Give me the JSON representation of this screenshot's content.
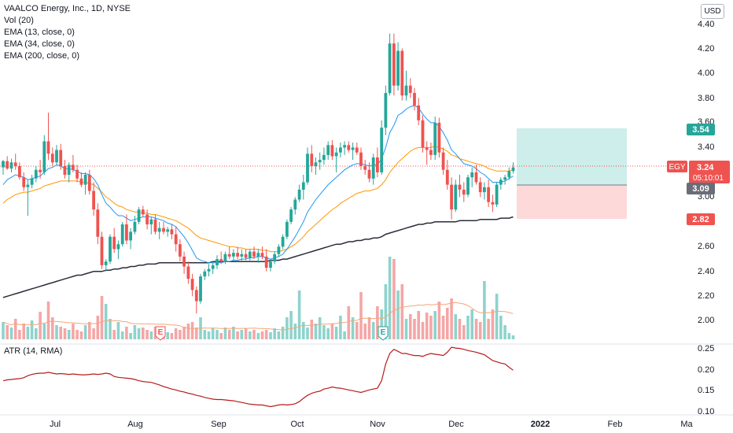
{
  "header": {
    "symbol_title": "VAALCO Energy, Inc., 1D, NYSE",
    "indicators": [
      "Vol (20)",
      "EMA (13, close, 0)",
      "EMA (34, close, 0)",
      "EMA (200, close, 0)"
    ],
    "currency": "USD"
  },
  "atr_legend": "ATR (14, RMA)",
  "price_axis": {
    "ticks": [
      "4.40",
      "4.20",
      "4.00",
      "3.80",
      "3.60",
      "3.40",
      "3.00",
      "2.60",
      "2.40",
      "2.20",
      "2.00"
    ]
  },
  "atr_axis": {
    "ticks": [
      "0.25",
      "0.20",
      "0.15",
      "0.10"
    ]
  },
  "time_axis": {
    "labels": [
      "Jul",
      "Aug",
      "Sep",
      "Oct",
      "Nov",
      "Dec",
      "2022",
      "Feb",
      "Ma"
    ]
  },
  "badges": {
    "symbol": "EGY",
    "last_price": "3.24",
    "countdown": "05:10:01",
    "target": "3.54",
    "entry": "3.09",
    "stop": "2.82",
    "earnings_letter": "E"
  },
  "colors": {
    "up": "#26a69a",
    "down": "#ef5350",
    "vol_up": "#8ed3cc",
    "vol_down": "#f5a6a6",
    "ema13": "#2196f3",
    "ema34": "#ff9800",
    "ema200": "#2a2e39",
    "atr": "#b71c1c",
    "profit_zone": "#cdeeea",
    "loss_zone": "#fdd9d9"
  },
  "chart_data": {
    "type": "candlestick",
    "title": "VAALCO Energy, Inc., 1D, NYSE",
    "ylim": [
      1.9,
      4.46
    ],
    "position": {
      "target": 3.54,
      "entry": 3.09,
      "stop": 2.82
    },
    "last_price": 3.24,
    "series_price": [
      [
        3.24,
        3.3,
        3.18,
        3.29
      ],
      [
        3.29,
        3.33,
        3.22,
        3.23
      ],
      [
        3.23,
        3.31,
        3.2,
        3.28
      ],
      [
        3.28,
        3.35,
        3.22,
        3.25
      ],
      [
        3.25,
        3.28,
        3.14,
        3.16
      ],
      [
        3.16,
        3.2,
        3.05,
        3.08
      ],
      [
        3.08,
        3.14,
        2.85,
        3.1
      ],
      [
        3.1,
        3.18,
        3.07,
        3.15
      ],
      [
        3.15,
        3.25,
        3.12,
        3.22
      ],
      [
        3.22,
        3.3,
        3.15,
        3.2
      ],
      [
        3.2,
        3.5,
        3.18,
        3.45
      ],
      [
        3.45,
        3.68,
        3.3,
        3.35
      ],
      [
        3.35,
        3.4,
        3.25,
        3.28
      ],
      [
        3.28,
        3.42,
        3.26,
        3.38
      ],
      [
        3.38,
        3.43,
        3.22,
        3.25
      ],
      [
        3.25,
        3.3,
        3.15,
        3.18
      ],
      [
        3.18,
        3.28,
        3.12,
        3.26
      ],
      [
        3.26,
        3.34,
        3.2,
        3.22
      ],
      [
        3.22,
        3.26,
        3.12,
        3.15
      ],
      [
        3.15,
        3.2,
        3.08,
        3.1
      ],
      [
        3.1,
        3.2,
        3.02,
        3.18
      ],
      [
        3.18,
        3.22,
        3.02,
        3.05
      ],
      [
        3.05,
        3.12,
        2.85,
        2.9
      ],
      [
        2.9,
        2.95,
        2.62,
        2.68
      ],
      [
        2.68,
        2.72,
        2.42,
        2.45
      ],
      [
        2.45,
        2.5,
        2.4,
        2.48
      ],
      [
        2.48,
        2.7,
        2.46,
        2.68
      ],
      [
        2.68,
        2.75,
        2.55,
        2.58
      ],
      [
        2.58,
        2.65,
        2.5,
        2.62
      ],
      [
        2.62,
        2.8,
        2.6,
        2.78
      ],
      [
        2.78,
        2.86,
        2.62,
        2.65
      ],
      [
        2.65,
        2.75,
        2.58,
        2.72
      ],
      [
        2.72,
        2.85,
        2.7,
        2.8
      ],
      [
        2.8,
        2.92,
        2.78,
        2.9
      ],
      [
        2.9,
        2.93,
        2.84,
        2.86
      ],
      [
        2.86,
        2.9,
        2.74,
        2.78
      ],
      [
        2.78,
        2.84,
        2.7,
        2.82
      ],
      [
        2.82,
        2.86,
        2.7,
        2.72
      ],
      [
        2.72,
        2.8,
        2.66,
        2.75
      ],
      [
        2.75,
        2.8,
        2.7,
        2.72
      ],
      [
        2.72,
        2.76,
        2.68,
        2.74
      ],
      [
        2.74,
        2.78,
        2.66,
        2.7
      ],
      [
        2.7,
        2.76,
        2.56,
        2.62
      ],
      [
        2.62,
        2.66,
        2.48,
        2.52
      ],
      [
        2.52,
        2.56,
        2.38,
        2.44
      ],
      [
        2.44,
        2.48,
        2.3,
        2.34
      ],
      [
        2.34,
        2.38,
        2.2,
        2.25
      ],
      [
        2.25,
        2.28,
        2.06,
        2.16
      ],
      [
        2.16,
        2.38,
        2.14,
        2.36
      ],
      [
        2.36,
        2.42,
        2.33,
        2.4
      ],
      [
        2.4,
        2.46,
        2.36,
        2.42
      ],
      [
        2.42,
        2.48,
        2.38,
        2.45
      ],
      [
        2.45,
        2.53,
        2.42,
        2.5
      ],
      [
        2.5,
        2.56,
        2.46,
        2.48
      ],
      [
        2.48,
        2.56,
        2.46,
        2.54
      ],
      [
        2.54,
        2.6,
        2.5,
        2.52
      ],
      [
        2.52,
        2.58,
        2.48,
        2.55
      ],
      [
        2.55,
        2.6,
        2.5,
        2.52
      ],
      [
        2.52,
        2.58,
        2.48,
        2.54
      ],
      [
        2.54,
        2.58,
        2.49,
        2.51
      ],
      [
        2.51,
        2.58,
        2.48,
        2.56
      ],
      [
        2.56,
        2.6,
        2.5,
        2.52
      ],
      [
        2.52,
        2.58,
        2.47,
        2.55
      ],
      [
        2.55,
        2.6,
        2.5,
        2.52
      ],
      [
        2.52,
        2.58,
        2.4,
        2.43
      ],
      [
        2.43,
        2.5,
        2.4,
        2.48
      ],
      [
        2.48,
        2.56,
        2.46,
        2.54
      ],
      [
        2.54,
        2.62,
        2.52,
        2.6
      ],
      [
        2.6,
        2.7,
        2.58,
        2.68
      ],
      [
        2.68,
        2.82,
        2.66,
        2.8
      ],
      [
        2.8,
        2.92,
        2.78,
        2.9
      ],
      [
        2.9,
        3.0,
        2.86,
        2.98
      ],
      [
        2.98,
        3.1,
        2.96,
        3.06
      ],
      [
        3.06,
        3.18,
        2.98,
        3.12
      ],
      [
        3.12,
        3.4,
        3.1,
        3.35
      ],
      [
        3.35,
        3.42,
        3.2,
        3.25
      ],
      [
        3.25,
        3.32,
        3.18,
        3.28
      ],
      [
        3.28,
        3.36,
        3.22,
        3.3
      ],
      [
        3.3,
        3.4,
        3.26,
        3.34
      ],
      [
        3.34,
        3.45,
        3.3,
        3.42
      ],
      [
        3.42,
        3.46,
        3.3,
        3.33
      ],
      [
        3.33,
        3.4,
        3.2,
        3.36
      ],
      [
        3.36,
        3.44,
        3.32,
        3.4
      ],
      [
        3.4,
        3.45,
        3.34,
        3.42
      ],
      [
        3.42,
        3.45,
        3.36,
        3.38
      ],
      [
        3.38,
        3.44,
        3.3,
        3.4
      ],
      [
        3.4,
        3.44,
        3.34,
        3.36
      ],
      [
        3.36,
        3.4,
        3.22,
        3.25
      ],
      [
        3.25,
        3.3,
        3.18,
        3.22
      ],
      [
        3.22,
        3.28,
        3.12,
        3.15
      ],
      [
        3.15,
        3.35,
        3.1,
        3.32
      ],
      [
        3.32,
        3.4,
        3.16,
        3.2
      ],
      [
        3.2,
        3.62,
        3.18,
        3.56
      ],
      [
        3.56,
        3.9,
        3.5,
        3.84
      ],
      [
        3.84,
        4.32,
        3.82,
        4.24
      ],
      [
        4.24,
        4.32,
        3.82,
        3.9
      ],
      [
        3.9,
        4.25,
        3.86,
        4.18
      ],
      [
        4.18,
        4.2,
        3.78,
        3.82
      ],
      [
        3.82,
        4.02,
        3.78,
        3.9
      ],
      [
        3.9,
        3.96,
        3.8,
        3.84
      ],
      [
        3.84,
        3.88,
        3.7,
        3.74
      ],
      [
        3.74,
        3.8,
        3.58,
        3.62
      ],
      [
        3.62,
        3.66,
        3.36,
        3.4
      ],
      [
        3.4,
        3.45,
        3.26,
        3.38
      ],
      [
        3.38,
        3.44,
        3.3,
        3.34
      ],
      [
        3.34,
        3.65,
        3.3,
        3.6
      ],
      [
        3.6,
        3.64,
        3.32,
        3.36
      ],
      [
        3.36,
        3.4,
        3.18,
        3.22
      ],
      [
        3.22,
        3.3,
        3.06,
        3.1
      ],
      [
        3.1,
        3.16,
        2.82,
        2.9
      ],
      [
        2.9,
        3.14,
        2.88,
        3.1
      ],
      [
        3.1,
        3.18,
        3.0,
        3.06
      ],
      [
        3.06,
        3.12,
        2.96,
        3.02
      ],
      [
        3.02,
        3.18,
        3.0,
        3.16
      ],
      [
        3.16,
        3.24,
        3.08,
        3.2
      ],
      [
        3.2,
        3.26,
        3.1,
        3.12
      ],
      [
        3.12,
        3.16,
        3.0,
        3.04
      ],
      [
        3.04,
        3.12,
        2.98,
        3.08
      ],
      [
        3.08,
        3.14,
        2.92,
        2.96
      ],
      [
        2.96,
        3.02,
        2.88,
        2.94
      ],
      [
        2.94,
        3.12,
        2.92,
        3.1
      ],
      [
        3.1,
        3.16,
        3.06,
        3.14
      ],
      [
        3.14,
        3.18,
        3.1,
        3.16
      ],
      [
        3.16,
        3.24,
        3.14,
        3.21
      ],
      [
        3.21,
        3.28,
        3.19,
        3.24
      ]
    ],
    "series_volume": [
      22,
      18,
      15,
      26,
      12,
      20,
      16,
      24,
      14,
      35,
      20,
      48,
      28,
      18,
      16,
      14,
      12,
      20,
      12,
      10,
      18,
      22,
      14,
      30,
      55,
      45,
      26,
      12,
      22,
      10,
      16,
      8,
      18,
      14,
      15,
      12,
      10,
      16,
      10,
      12,
      9,
      8,
      14,
      12,
      16,
      20,
      22,
      15,
      28,
      12,
      10,
      14,
      12,
      8,
      15,
      12,
      16,
      10,
      12,
      14,
      10,
      12,
      8,
      10,
      12,
      9,
      14,
      10,
      16,
      28,
      36,
      20,
      62,
      22,
      15,
      25,
      20,
      28,
      18,
      14,
      20,
      16,
      30,
      10,
      42,
      28,
      22,
      60,
      20,
      28,
      22,
      42,
      38,
      70,
      105,
      102,
      62,
      70,
      26,
      32,
      26,
      36,
      22,
      34,
      30,
      36,
      48,
      30,
      40,
      52,
      32,
      26,
      18,
      30,
      38,
      26,
      22,
      74,
      26,
      38,
      58,
      30,
      18,
      8,
      5
    ],
    "series_ema13": [
      3.1,
      3.14,
      3.16,
      3.18,
      3.17,
      3.16,
      3.14,
      3.15,
      3.16,
      3.17,
      3.2,
      3.23,
      3.24,
      3.26,
      3.25,
      3.23,
      3.23,
      3.22,
      3.21,
      3.19,
      3.19,
      3.18,
      3.15,
      3.1,
      3.02,
      2.95,
      2.92,
      2.88,
      2.85,
      2.85,
      2.83,
      2.81,
      2.82,
      2.83,
      2.84,
      2.84,
      2.84,
      2.83,
      2.82,
      2.81,
      2.79,
      2.78,
      2.76,
      2.72,
      2.68,
      2.63,
      2.57,
      2.51,
      2.49,
      2.48,
      2.47,
      2.47,
      2.47,
      2.47,
      2.48,
      2.48,
      2.49,
      2.49,
      2.5,
      2.5,
      2.51,
      2.51,
      2.52,
      2.52,
      2.51,
      2.5,
      2.51,
      2.52,
      2.54,
      2.58,
      2.63,
      2.68,
      2.74,
      2.8,
      2.88,
      2.93,
      2.98,
      3.02,
      3.06,
      3.1,
      3.13,
      3.16,
      3.19,
      3.22,
      3.24,
      3.26,
      3.27,
      3.27,
      3.26,
      3.25,
      3.26,
      3.26,
      3.31,
      3.4,
      3.52,
      3.58,
      3.66,
      3.68,
      3.71,
      3.73,
      3.74,
      3.72,
      3.67,
      3.63,
      3.6,
      3.6,
      3.57,
      3.52,
      3.46,
      3.38,
      3.35,
      3.31,
      3.27,
      3.26,
      3.25,
      3.23,
      3.2,
      3.18,
      3.15,
      3.12,
      3.12,
      3.12,
      3.13,
      3.15,
      3.17
    ],
    "series_ema34": [
      2.95,
      2.98,
      3.0,
      3.02,
      3.03,
      3.04,
      3.04,
      3.05,
      3.06,
      3.07,
      3.09,
      3.1,
      3.11,
      3.12,
      3.13,
      3.13,
      3.13,
      3.13,
      3.13,
      3.12,
      3.12,
      3.11,
      3.1,
      3.07,
      3.04,
      3.0,
      2.98,
      2.95,
      2.93,
      2.92,
      2.9,
      2.89,
      2.88,
      2.88,
      2.87,
      2.87,
      2.86,
      2.86,
      2.85,
      2.84,
      2.83,
      2.82,
      2.81,
      2.79,
      2.77,
      2.75,
      2.72,
      2.69,
      2.67,
      2.66,
      2.65,
      2.64,
      2.63,
      2.62,
      2.61,
      2.6,
      2.6,
      2.59,
      2.59,
      2.58,
      2.58,
      2.58,
      2.58,
      2.57,
      2.57,
      2.56,
      2.56,
      2.56,
      2.57,
      2.58,
      2.6,
      2.62,
      2.65,
      2.68,
      2.72,
      2.75,
      2.78,
      2.81,
      2.84,
      2.87,
      2.9,
      2.92,
      2.95,
      2.97,
      2.99,
      3.01,
      3.03,
      3.04,
      3.05,
      3.05,
      3.06,
      3.07,
      3.1,
      3.14,
      3.2,
      3.24,
      3.28,
      3.31,
      3.34,
      3.37,
      3.39,
      3.4,
      3.4,
      3.4,
      3.4,
      3.41,
      3.4,
      3.39,
      3.37,
      3.34,
      3.33,
      3.31,
      3.3,
      3.29,
      3.28,
      3.27,
      3.26,
      3.25,
      3.23,
      3.22,
      3.21,
      3.21,
      3.21,
      3.21,
      3.22
    ],
    "series_ema200": [
      2.19,
      2.2,
      2.21,
      2.22,
      2.23,
      2.24,
      2.25,
      2.26,
      2.27,
      2.28,
      2.29,
      2.3,
      2.31,
      2.32,
      2.33,
      2.34,
      2.35,
      2.36,
      2.37,
      2.37,
      2.38,
      2.39,
      2.4,
      2.4,
      2.4,
      2.41,
      2.41,
      2.42,
      2.42,
      2.43,
      2.43,
      2.44,
      2.44,
      2.45,
      2.45,
      2.46,
      2.46,
      2.46,
      2.47,
      2.47,
      2.47,
      2.47,
      2.47,
      2.47,
      2.47,
      2.47,
      2.47,
      2.47,
      2.47,
      2.47,
      2.47,
      2.48,
      2.48,
      2.48,
      2.48,
      2.48,
      2.48,
      2.48,
      2.48,
      2.48,
      2.48,
      2.48,
      2.48,
      2.48,
      2.48,
      2.49,
      2.49,
      2.49,
      2.5,
      2.5,
      2.51,
      2.52,
      2.53,
      2.54,
      2.55,
      2.56,
      2.57,
      2.58,
      2.59,
      2.6,
      2.61,
      2.62,
      2.62,
      2.63,
      2.64,
      2.64,
      2.65,
      2.65,
      2.66,
      2.66,
      2.67,
      2.67,
      2.68,
      2.7,
      2.71,
      2.72,
      2.73,
      2.74,
      2.75,
      2.76,
      2.77,
      2.78,
      2.78,
      2.79,
      2.79,
      2.8,
      2.8,
      2.8,
      2.8,
      2.8,
      2.8,
      2.81,
      2.81,
      2.81,
      2.81,
      2.81,
      2.82,
      2.82,
      2.82,
      2.82,
      2.82,
      2.83,
      2.83,
      2.83,
      2.84
    ],
    "series_atr": [
      0.17,
      0.172,
      0.173,
      0.174,
      0.175,
      0.177,
      0.182,
      0.185,
      0.187,
      0.188,
      0.188,
      0.19,
      0.188,
      0.186,
      0.187,
      0.186,
      0.185,
      0.186,
      0.185,
      0.184,
      0.184,
      0.185,
      0.186,
      0.185,
      0.186,
      0.188,
      0.186,
      0.18,
      0.178,
      0.177,
      0.176,
      0.175,
      0.173,
      0.17,
      0.168,
      0.167,
      0.166,
      0.163,
      0.16,
      0.156,
      0.153,
      0.15,
      0.148,
      0.145,
      0.143,
      0.14,
      0.138,
      0.135,
      0.133,
      0.13,
      0.128,
      0.126,
      0.125,
      0.125,
      0.124,
      0.123,
      0.122,
      0.12,
      0.118,
      0.116,
      0.114,
      0.113,
      0.112,
      0.112,
      0.11,
      0.108,
      0.11,
      0.112,
      0.113,
      0.112,
      0.113,
      0.115,
      0.12,
      0.128,
      0.135,
      0.14,
      0.143,
      0.145,
      0.15,
      0.152,
      0.155,
      0.153,
      0.152,
      0.15,
      0.148,
      0.146,
      0.144,
      0.142,
      0.145,
      0.148,
      0.15,
      0.152,
      0.17,
      0.21,
      0.235,
      0.245,
      0.24,
      0.235,
      0.235,
      0.232,
      0.23,
      0.23,
      0.228,
      0.232,
      0.235,
      0.233,
      0.232,
      0.23,
      0.238,
      0.25,
      0.248,
      0.247,
      0.245,
      0.242,
      0.24,
      0.238,
      0.235,
      0.232,
      0.225,
      0.218,
      0.215,
      0.212,
      0.21,
      0.202,
      0.195
    ],
    "atr_ylim": [
      0.1,
      0.26
    ]
  }
}
